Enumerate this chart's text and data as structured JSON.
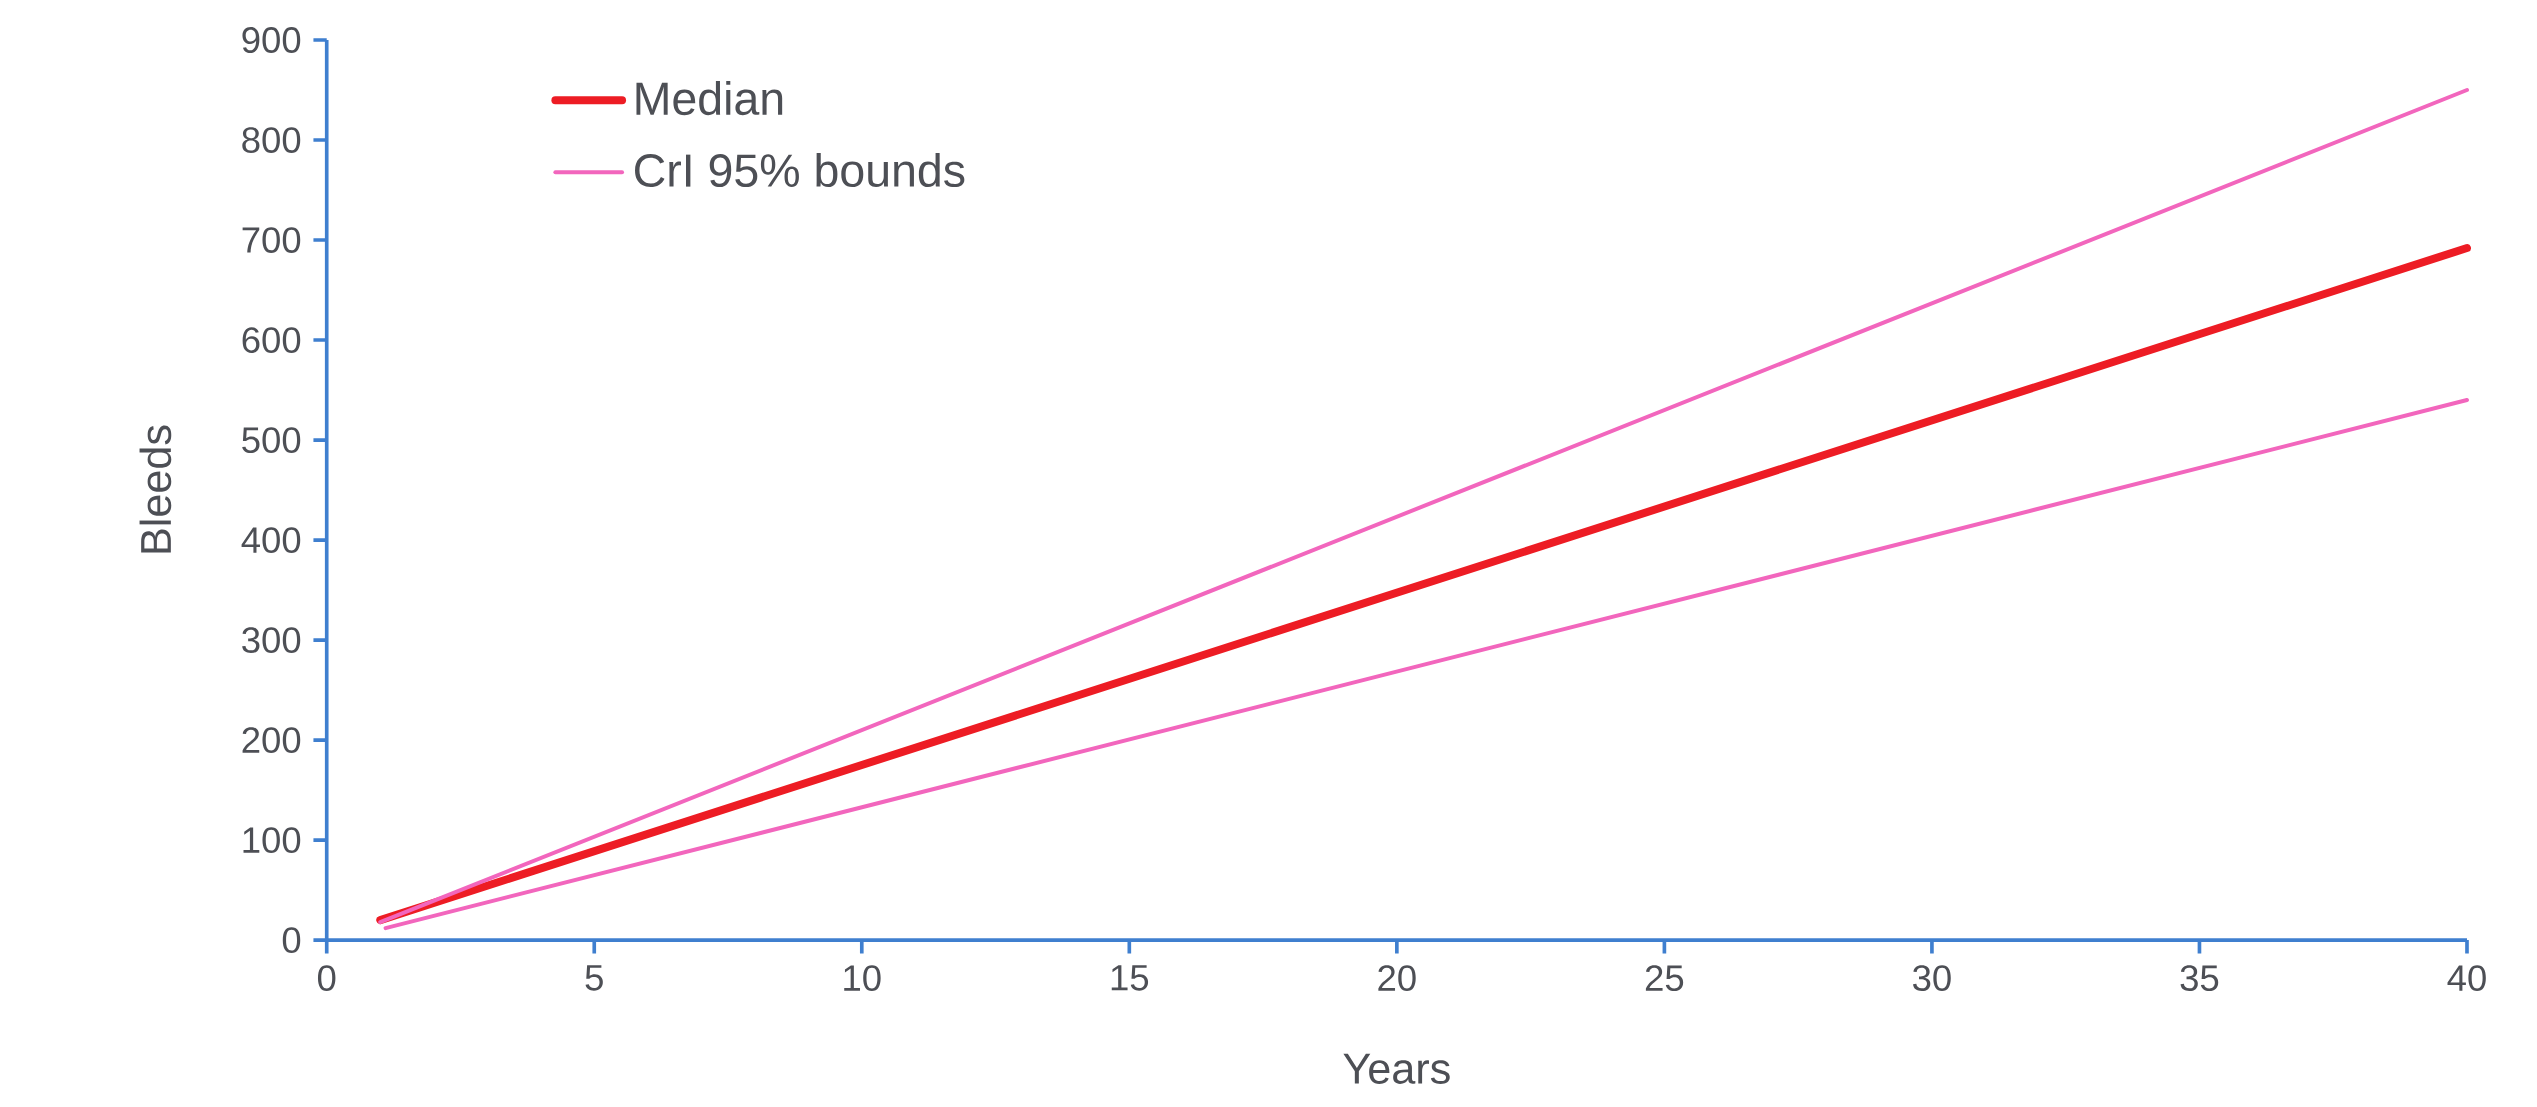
{
  "chart_data": {
    "type": "line",
    "xlabel": "Years",
    "ylabel": "Bleeds",
    "xlim": [
      0,
      40
    ],
    "ylim": [
      0,
      900
    ],
    "xticks": [
      0,
      5,
      10,
      15,
      20,
      25,
      30,
      35,
      40
    ],
    "yticks": [
      0,
      100,
      200,
      300,
      400,
      500,
      600,
      700,
      800,
      900
    ],
    "grid": false,
    "legend": "top left",
    "marker": "none",
    "line_style": "solid",
    "series": [
      {
        "name": "Median",
        "color": "#ed1c24",
        "x": [
          1,
          40
        ],
        "values": [
          20,
          692
        ]
      },
      {
        "name": "CrI 95% bounds",
        "color": "#f266bd",
        "x": [
          1,
          40
        ],
        "values": [
          18,
          850
        ]
      },
      {
        "color": "#f266bd",
        "x": [
          1.1,
          40
        ],
        "values": [
          12,
          540
        ]
      }
    ]
  }
}
